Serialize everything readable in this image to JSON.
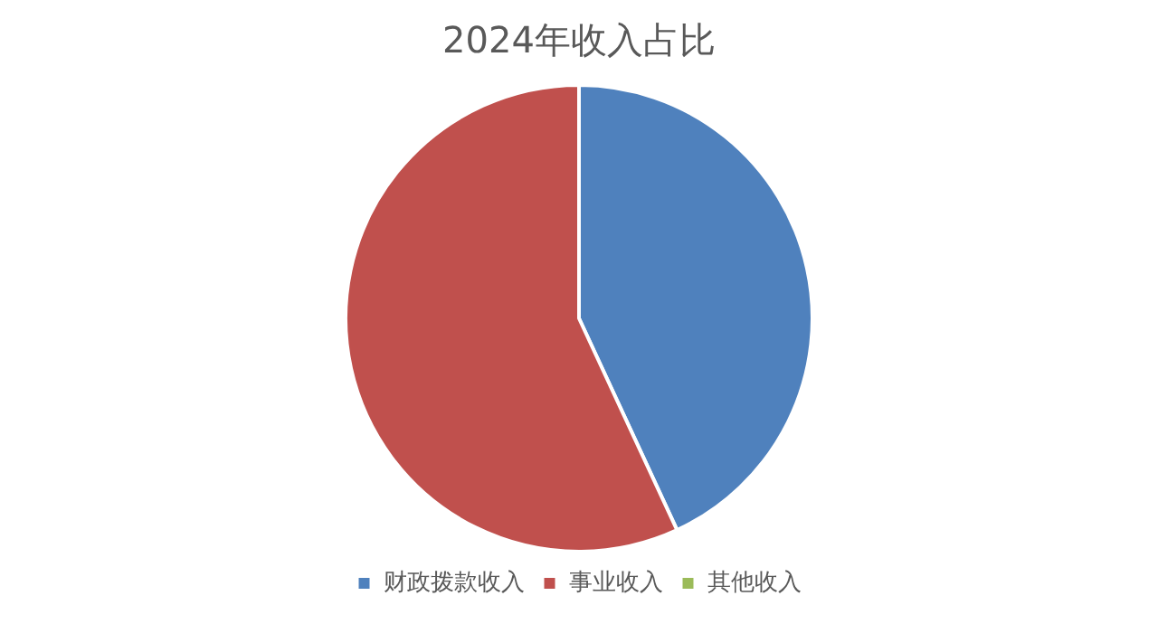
{
  "chart_data": {
    "type": "pie",
    "title": "2024年收入占比",
    "categories": [
      "财政拨款收入",
      "事业收入",
      "其他收入"
    ],
    "values": [
      43.1,
      56.9,
      0
    ],
    "colors": [
      "#4f81bd",
      "#c0504d",
      "#9bbb59"
    ],
    "legend": "bottom"
  }
}
